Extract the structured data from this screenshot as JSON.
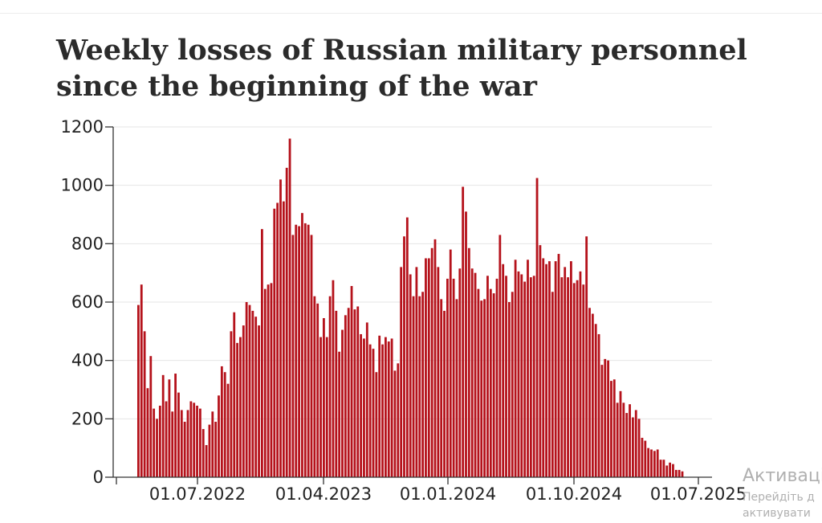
{
  "chart_data": {
    "type": "bar",
    "title": "Weekly losses of Russian military personnel since the beginning of the war",
    "xlabel": "",
    "ylabel": "",
    "ylim": [
      0,
      1200
    ],
    "y_ticks": [
      0,
      200,
      400,
      600,
      800,
      1000,
      1200
    ],
    "x_tick_labels": [
      "01.07.2022",
      "01.04.2023",
      "01.01.2024",
      "01.10.2024",
      "01.07.2025"
    ],
    "grid": true,
    "bar_color": "#b5121b",
    "series": [
      {
        "values": [
          590,
          660,
          500,
          305,
          415,
          235,
          200,
          245,
          350,
          260,
          335,
          225,
          355,
          290,
          230,
          190,
          230,
          260,
          255,
          245,
          235,
          165,
          110,
          180,
          225,
          190,
          280,
          380,
          360,
          320,
          500,
          565,
          460,
          480,
          520,
          600,
          590,
          570,
          550,
          520,
          850,
          645,
          660,
          665,
          920,
          940,
          1020,
          945,
          1060,
          1160,
          830,
          865,
          860,
          905,
          870,
          865,
          830,
          620,
          595,
          480,
          545,
          480,
          620,
          675,
          570,
          430,
          505,
          555,
          580,
          655,
          575,
          585,
          490,
          475,
          530,
          455,
          440,
          360,
          485,
          455,
          480,
          465,
          475,
          365,
          390,
          720,
          825,
          890,
          695,
          620,
          720,
          620,
          635,
          750,
          750,
          785,
          815,
          720,
          610,
          570,
          680,
          780,
          680,
          610,
          715,
          995,
          910,
          785,
          715,
          700,
          645,
          605,
          610,
          690,
          645,
          630,
          680,
          830,
          730,
          690,
          600,
          635,
          745,
          705,
          695,
          670,
          745,
          685,
          690,
          1025,
          795,
          750,
          730,
          740,
          635,
          740,
          765,
          685,
          720,
          685,
          740,
          665,
          675,
          705,
          660,
          825,
          580,
          560,
          525,
          490,
          385,
          405,
          400,
          330,
          335,
          255,
          295,
          255,
          220,
          250,
          205,
          230,
          200,
          135,
          125,
          100,
          95,
          90,
          95,
          60,
          60,
          40,
          50,
          45,
          25,
          25,
          20
        ]
      }
    ]
  },
  "watermark": {
    "line1": "Активаці",
    "line2": "Перейдіть д",
    "line3": "активувати"
  }
}
